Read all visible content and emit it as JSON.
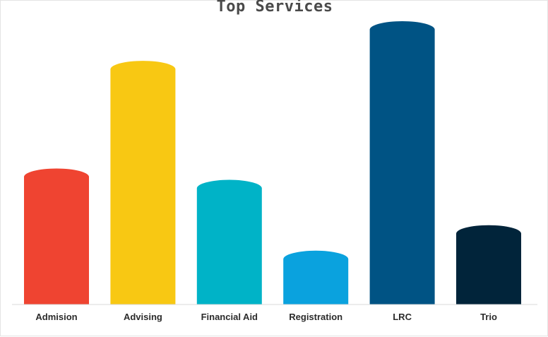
{
  "chart_data": {
    "type": "bar",
    "title": "Top Services",
    "xlabel": "",
    "ylabel": "",
    "categories": [
      "Admision",
      "Advising",
      "Financial Aid",
      "Registration",
      "LRC",
      "Trio"
    ],
    "values": [
      48,
      86,
      44,
      19,
      100,
      28
    ],
    "ylim": [
      0,
      100
    ],
    "grid": false,
    "legend": "none",
    "colors": [
      "#ef4431",
      "#f8c813",
      "#00b3c7",
      "#0aa2de",
      "#005384",
      "#01243a"
    ]
  }
}
